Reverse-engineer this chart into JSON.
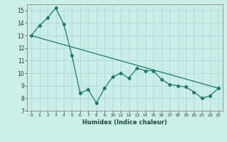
{
  "title": "",
  "xlabel": "Humidex (Indice chaleur)",
  "bg_color": "#cceee8",
  "line_color": "#1a7a6e",
  "grid_color": "#aaddd8",
  "xlim": [
    -0.5,
    23.5
  ],
  "ylim": [
    7,
    15.5
  ],
  "yticks": [
    7,
    8,
    9,
    10,
    11,
    12,
    13,
    14,
    15
  ],
  "xticks": [
    0,
    1,
    2,
    3,
    4,
    5,
    6,
    7,
    8,
    9,
    10,
    11,
    12,
    13,
    14,
    15,
    16,
    17,
    18,
    19,
    20,
    21,
    22,
    23
  ],
  "line1_x": [
    0,
    1,
    2,
    3,
    4,
    5,
    6,
    7,
    8,
    9,
    10,
    11,
    12,
    13,
    14,
    15,
    16,
    17,
    18,
    19,
    20,
    21,
    22,
    23
  ],
  "line1_y": [
    13.0,
    13.8,
    14.4,
    15.2,
    13.9,
    11.4,
    8.4,
    8.7,
    7.6,
    8.8,
    9.7,
    10.0,
    9.6,
    10.4,
    10.2,
    10.2,
    9.5,
    9.1,
    9.0,
    8.9,
    8.5,
    8.0,
    8.2,
    8.8
  ],
  "line2_x": [
    0,
    23
  ],
  "line2_y": [
    13.0,
    8.8
  ]
}
